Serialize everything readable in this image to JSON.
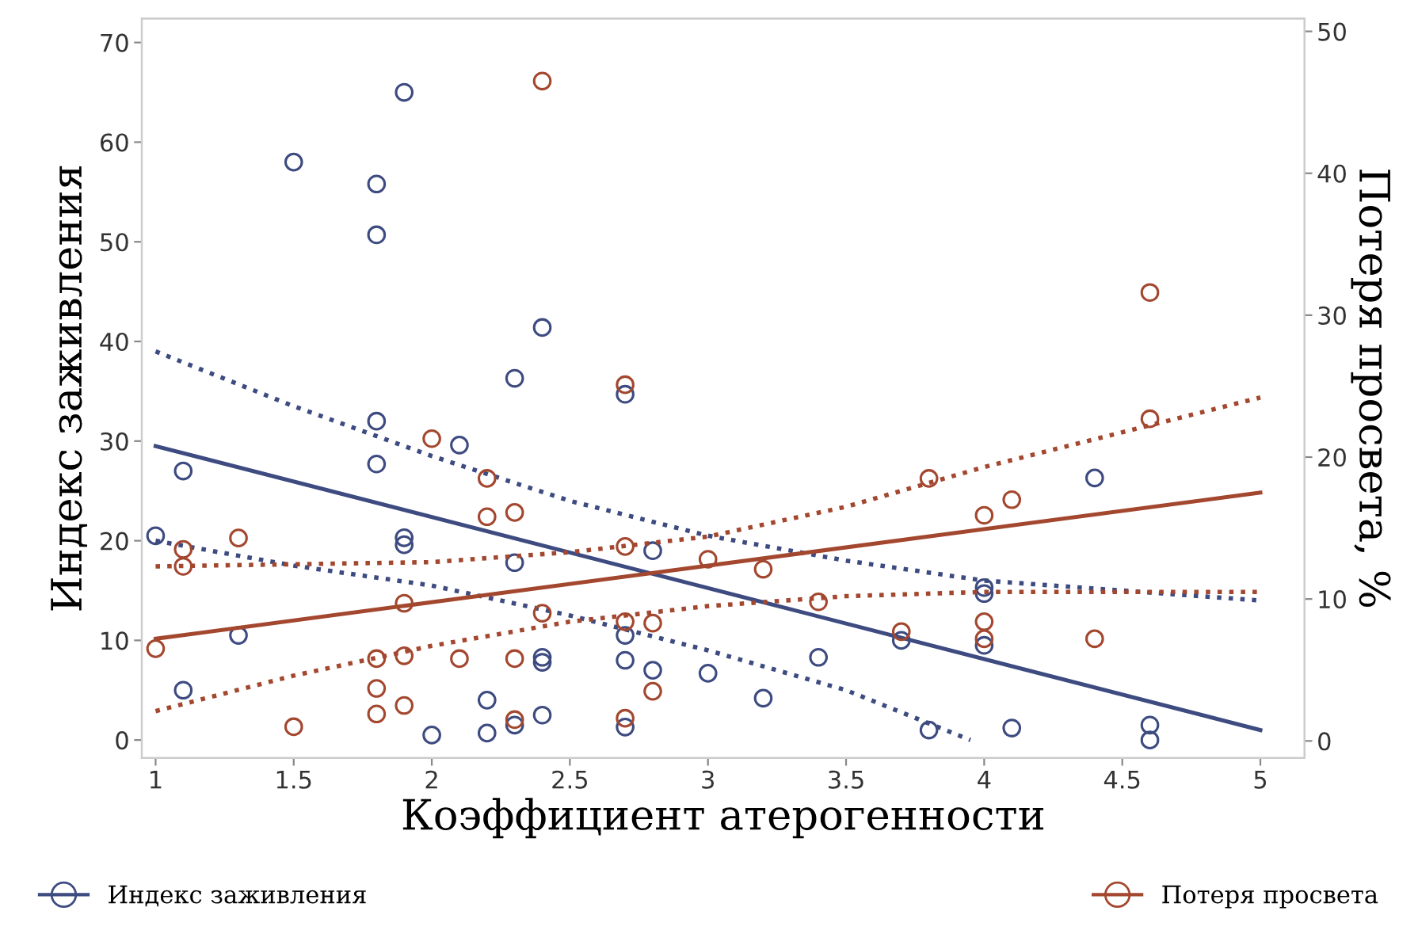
{
  "chart_data": {
    "type": "scatter",
    "xlabel": "Коэффициент атерогенности",
    "ylabel": "Индекс заживления",
    "y2label": "Потеря просвета, %",
    "xlim": [
      0.95,
      5.16
    ],
    "xticks": [
      1,
      1.5,
      2,
      2.5,
      3,
      3.5,
      4,
      4.5,
      5
    ],
    "ylim": [
      -1.8,
      72.4
    ],
    "yticks": [
      0,
      10,
      20,
      30,
      40,
      50,
      60,
      70
    ],
    "y2lim": [
      -1.2,
      50.9
    ],
    "y2ticks": [
      0,
      10,
      20,
      30,
      40,
      50
    ],
    "grid": false,
    "legend": "bottom",
    "series": [
      {
        "name": "Индекс заживления",
        "marker": "circle",
        "color": "#3d4b80",
        "x": [
          1,
          1.1,
          1.1,
          1.3,
          1.5,
          1.8,
          1.8,
          1.8,
          1.8,
          1.9,
          1.9,
          1.9,
          2,
          2.1,
          2.2,
          2.2,
          2.3,
          2.3,
          2.3,
          2.4,
          2.4,
          2.4,
          2.4,
          2.7,
          2.7,
          2.7,
          2.7,
          2.8,
          2.8,
          3.0,
          3.2,
          3.4,
          3.7,
          3.8,
          4,
          4,
          4,
          4.1,
          4.4,
          4.6,
          4.6
        ],
        "values": [
          20.5,
          27,
          5,
          10.5,
          58,
          55.8,
          50.7,
          32,
          27.7,
          65,
          20.3,
          19.6,
          0.5,
          29.6,
          4,
          0.7,
          36.3,
          17.8,
          1.5,
          41.4,
          8.3,
          7.8,
          2.5,
          34.7,
          10.5,
          8,
          1.3,
          19,
          7,
          6.7,
          4.2,
          8.3,
          10,
          1,
          15.3,
          14.7,
          9.5,
          1.2,
          26.3,
          1.5,
          0
        ]
      },
      {
        "name": "Потеря просвета",
        "marker": "circle",
        "axis": "y2",
        "color": "#a3472f",
        "x": [
          1,
          1.1,
          1.1,
          1.3,
          1.5,
          1.8,
          1.8,
          1.8,
          1.9,
          1.9,
          1.9,
          2,
          2.1,
          2.2,
          2.2,
          2.3,
          2.3,
          2.3,
          2.4,
          2.4,
          2.7,
          2.7,
          2.7,
          2.7,
          2.8,
          2.8,
          3.0,
          3.2,
          3.4,
          3.7,
          3.8,
          4,
          4,
          4,
          4.1,
          4.4,
          4.6,
          4.6
        ],
        "values": [
          6.5,
          13.5,
          12.3,
          14.3,
          1.0,
          5.8,
          3.7,
          1.9,
          9.7,
          6.0,
          2.5,
          21.3,
          5.8,
          18.5,
          15.8,
          16.1,
          5.8,
          1.5,
          46.5,
          9.0,
          25.1,
          13.7,
          8.4,
          1.6,
          8.3,
          3.5,
          12.8,
          12.1,
          9.8,
          7.7,
          18.5,
          15.9,
          8.4,
          7.2,
          17.0,
          7.2,
          31.6,
          22.7
        ]
      },
      {
        "type": "line",
        "line_style": "solid",
        "color": "#3d4b80",
        "x": [
          1,
          5
        ],
        "values": [
          29.5,
          1
        ]
      },
      {
        "type": "line",
        "line_style": "dotted",
        "color": "#3d4b80",
        "x": [
          1,
          1.5,
          2,
          2.5,
          3,
          3.5,
          4,
          5
        ],
        "values": [
          39,
          33.5,
          28.5,
          24,
          20.5,
          18,
          16,
          14
        ]
      },
      {
        "type": "line",
        "line_style": "dotted",
        "color": "#3d4b80",
        "x": [
          1,
          1.5,
          2,
          2.5,
          3,
          3.5,
          3.95
        ],
        "values": [
          20,
          17.5,
          15.5,
          12.5,
          9,
          5,
          0
        ]
      },
      {
        "type": "line",
        "line_style": "solid",
        "axis": "y2",
        "color": "#a3472f",
        "x": [
          1,
          5
        ],
        "values": [
          7.2,
          17.5
        ]
      },
      {
        "type": "line",
        "line_style": "dotted",
        "axis": "y2",
        "color": "#a3472f",
        "x": [
          1,
          2,
          2.5,
          3,
          3.5,
          4,
          5
        ],
        "values": [
          12.3,
          12.6,
          13.3,
          14.4,
          16.5,
          19.3,
          24.2
        ]
      },
      {
        "type": "line",
        "line_style": "dotted",
        "axis": "y2",
        "color": "#a3472f",
        "x": [
          1,
          1.5,
          2,
          2.5,
          3,
          3.5,
          4,
          5
        ],
        "values": [
          2.1,
          4.6,
          6.7,
          8.4,
          9.5,
          10.2,
          10.5,
          10.5
        ]
      }
    ]
  }
}
